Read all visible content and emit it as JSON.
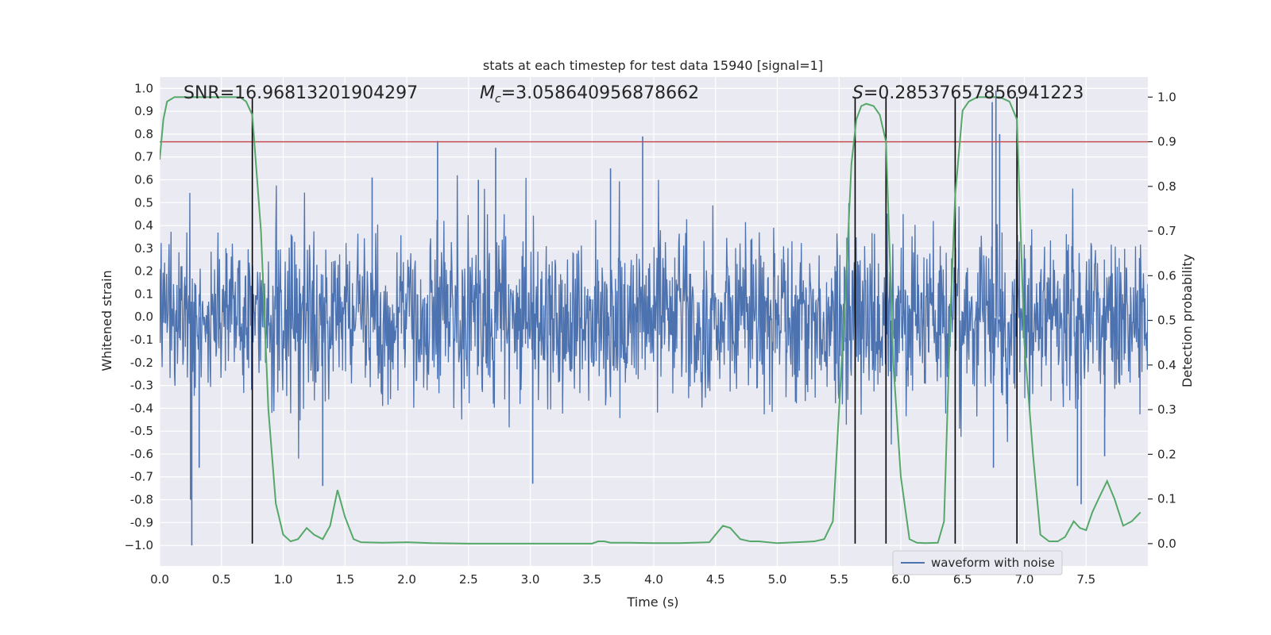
{
  "chart_data": {
    "type": "line",
    "title": "stats at each timestep for test data 15940 [signal=1]",
    "xlabel": "Time (s)",
    "ylabel_left": "Whitened strain",
    "ylabel_right": "Detection probability",
    "xlim": [
      0.0,
      8.0
    ],
    "ylim_left": [
      -1.09,
      1.05
    ],
    "ylim_right": [
      -0.05,
      1.045
    ],
    "x_ticks": [
      0.0,
      0.5,
      1.0,
      1.5,
      2.0,
      2.5,
      3.0,
      3.5,
      4.0,
      4.5,
      5.0,
      5.5,
      6.0,
      6.5,
      7.0,
      7.5
    ],
    "x_tick_labels": [
      "0.0",
      "0.5",
      "1.0",
      "1.5",
      "2.0",
      "2.5",
      "3.0",
      "3.5",
      "4.0",
      "4.5",
      "5.0",
      "5.5",
      "6.0",
      "6.5",
      "7.0",
      "7.5"
    ],
    "y_left_ticks": [
      1.0,
      0.9,
      0.8,
      0.7,
      0.6,
      0.5,
      0.4,
      0.3,
      0.2,
      0.1,
      0.0,
      -0.1,
      -0.2,
      -0.3,
      -0.4,
      -0.5,
      -0.6,
      -0.7,
      -0.8,
      -0.9,
      -1.0
    ],
    "y_left_tick_labels": [
      "1.0",
      "0.9",
      "0.8",
      "0.7",
      "0.6",
      "0.5",
      "0.4",
      "0.3",
      "0.2",
      "0.1",
      "0.0",
      "-0.1",
      "-0.2",
      "-0.3",
      "-0.4",
      "-0.5",
      "-0.6",
      "-0.7",
      "-0.8",
      "-0.9",
      "−1.0"
    ],
    "y_right_ticks": [
      1.0,
      0.9,
      0.8,
      0.7,
      0.6,
      0.5,
      0.4,
      0.3,
      0.2,
      0.1,
      0.0
    ],
    "y_right_tick_labels": [
      "1.0",
      "0.9",
      "0.8",
      "0.7",
      "0.6",
      "0.5",
      "0.4",
      "0.3",
      "0.2",
      "0.1",
      "0.0"
    ],
    "annotations": {
      "snr": "SNR=16.96813201904297",
      "mc_symbol": "M",
      "mc_sub": "c",
      "mc_value": "=3.058640956878662",
      "s_symbol": "S",
      "s_value": "=0.28537657856941223"
    },
    "threshold": {
      "axis": "right",
      "value": 0.9,
      "color": "#c44e52"
    },
    "vertical_lines": [
      0.75,
      5.63,
      5.88,
      6.44,
      6.94
    ],
    "legend": {
      "label": "waveform with noise",
      "location": "lower-right"
    },
    "waveform": {
      "name": "waveform with noise",
      "color": "#4c72b0",
      "n_samples": 2000,
      "typical_amplitude": 0.35,
      "seed": 15940,
      "peaks": [
        {
          "x": 0.26,
          "y": -1.0
        },
        {
          "x": 0.25,
          "y": -0.8
        },
        {
          "x": 0.32,
          "y": -0.66
        },
        {
          "x": 2.25,
          "y": 0.77
        },
        {
          "x": 2.72,
          "y": 0.74
        },
        {
          "x": 3.91,
          "y": 0.79
        },
        {
          "x": 3.02,
          "y": -0.73
        },
        {
          "x": 1.32,
          "y": -0.74
        },
        {
          "x": 7.46,
          "y": -0.82
        },
        {
          "x": 7.43,
          "y": -0.74
        },
        {
          "x": 6.77,
          "y": 0.99
        },
        {
          "x": 6.74,
          "y": 0.94
        },
        {
          "x": 6.8,
          "y": 0.8
        },
        {
          "x": 6.75,
          "y": -0.66
        },
        {
          "x": 7.65,
          "y": -0.61
        },
        {
          "x": 3.65,
          "y": 0.65
        },
        {
          "x": 1.72,
          "y": 0.61
        },
        {
          "x": 2.58,
          "y": 0.6
        }
      ]
    },
    "detection_probability": {
      "name": "detection probability",
      "color": "#55a868",
      "x": [
        0.0,
        0.03,
        0.06,
        0.12,
        0.25,
        0.4,
        0.55,
        0.65,
        0.7,
        0.75,
        0.82,
        0.88,
        0.94,
        1.0,
        1.06,
        1.12,
        1.19,
        1.25,
        1.32,
        1.38,
        1.44,
        1.5,
        1.57,
        1.63,
        1.8,
        2.0,
        2.2,
        2.5,
        3.0,
        3.5,
        3.55,
        3.6,
        3.65,
        3.8,
        4.0,
        4.2,
        4.45,
        4.5,
        4.56,
        4.62,
        4.7,
        4.78,
        4.85,
        5.0,
        5.3,
        5.38,
        5.45,
        5.5,
        5.55,
        5.6,
        5.64,
        5.68,
        5.72,
        5.78,
        5.83,
        5.88,
        5.94,
        6.0,
        6.07,
        6.13,
        6.2,
        6.3,
        6.35,
        6.4,
        6.44,
        6.5,
        6.55,
        6.62,
        6.7,
        6.8,
        6.88,
        6.94,
        7.0,
        7.07,
        7.13,
        7.2,
        7.27,
        7.33,
        7.4,
        7.45,
        7.5,
        7.55,
        7.6,
        7.67,
        7.73,
        7.8,
        7.87,
        7.94
      ],
      "y": [
        0.86,
        0.95,
        0.99,
        1.0,
        1.0,
        1.0,
        1.0,
        1.0,
        0.99,
        0.96,
        0.7,
        0.3,
        0.09,
        0.02,
        0.005,
        0.01,
        0.035,
        0.02,
        0.01,
        0.04,
        0.12,
        0.06,
        0.01,
        0.003,
        0.002,
        0.003,
        0.001,
        0.0,
        0.0,
        0.0,
        0.005,
        0.005,
        0.002,
        0.002,
        0.001,
        0.001,
        0.003,
        0.02,
        0.04,
        0.035,
        0.01,
        0.005,
        0.005,
        0.001,
        0.005,
        0.01,
        0.05,
        0.3,
        0.55,
        0.85,
        0.95,
        0.98,
        0.985,
        0.98,
        0.96,
        0.9,
        0.4,
        0.15,
        0.01,
        0.002,
        0.001,
        0.002,
        0.05,
        0.5,
        0.78,
        0.97,
        0.99,
        1.0,
        1.0,
        1.0,
        0.99,
        0.95,
        0.45,
        0.2,
        0.02,
        0.005,
        0.005,
        0.015,
        0.05,
        0.035,
        0.03,
        0.07,
        0.1,
        0.14,
        0.1,
        0.04,
        0.05,
        0.07
      ]
    }
  }
}
